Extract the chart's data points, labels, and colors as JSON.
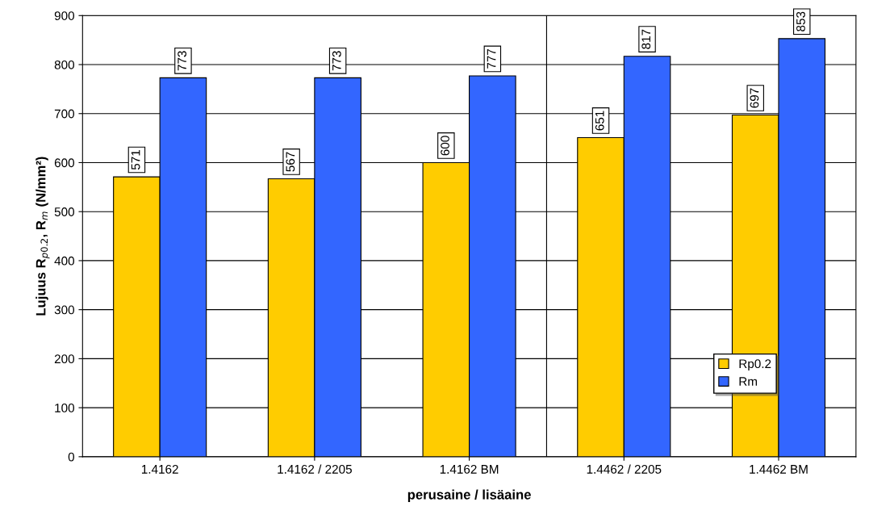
{
  "chart_data": {
    "type": "bar",
    "xlabel": "perusaine / lisäaine",
    "ylabel": "Lujuus R$_{p0.2}$, R$_{m}$ (N/mm²)",
    "categories": [
      "1.4162",
      "1.4162 / 2205",
      "1.4162 BM",
      "1.4462 / 2205",
      "1.4462 BM"
    ],
    "series": [
      {
        "name": "Rp0.2",
        "color": "#ffcc00",
        "values": [
          571,
          567,
          600,
          651,
          697
        ]
      },
      {
        "name": "Rm",
        "color": "#3366ff",
        "values": [
          773,
          773,
          777,
          817,
          853
        ]
      }
    ],
    "ylim": [
      0,
      900
    ],
    "yticks": [
      0,
      100,
      200,
      300,
      400,
      500,
      600,
      700,
      800,
      900
    ],
    "grid": "y",
    "legend": "bottom right",
    "data_labels": true
  }
}
